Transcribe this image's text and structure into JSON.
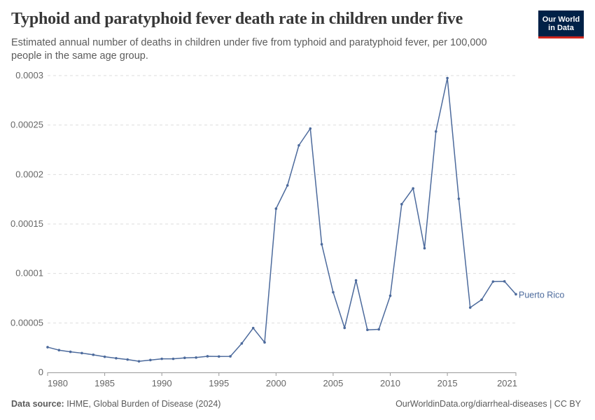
{
  "header": {
    "title": "Typhoid and paratyphoid fever death rate in children under five",
    "subtitle": "Estimated annual number of deaths in children under five from typhoid and paratyphoid fever, per 100,000 people in the same age group.",
    "logo_line1": "Our World",
    "logo_line2": "in Data"
  },
  "footer": {
    "source_label": "Data source:",
    "source_text": "IHME, Global Burden of Disease (2024)",
    "right_text": "OurWorldinData.org/diarrheal-diseases | CC BY"
  },
  "colors": {
    "series": "#4c6a9c",
    "grid": "#dddddd",
    "axis": "#666666"
  },
  "chart_data": {
    "type": "line",
    "title": "Typhoid and paratyphoid fever death rate in children under five",
    "xlim": [
      1980,
      2021
    ],
    "ylim": [
      0,
      0.0003
    ],
    "x_ticks": [
      1980,
      1985,
      1990,
      1995,
      2000,
      2005,
      2010,
      2015,
      2021
    ],
    "y_ticks": [
      {
        "value": 0,
        "label": "0"
      },
      {
        "value": 5e-05,
        "label": "0.00005"
      },
      {
        "value": 0.0001,
        "label": "0.0001"
      },
      {
        "value": 0.00015,
        "label": "0.00015"
      },
      {
        "value": 0.0002,
        "label": "0.0002"
      },
      {
        "value": 0.00025,
        "label": "0.00025"
      },
      {
        "value": 0.0003,
        "label": "0.0003"
      }
    ],
    "grid": true,
    "series": [
      {
        "name": "Puerto Rico",
        "x": [
          1980,
          1981,
          1982,
          1983,
          1984,
          1985,
          1986,
          1987,
          1988,
          1989,
          1990,
          1991,
          1992,
          1993,
          1994,
          1995,
          1996,
          1997,
          1998,
          1999,
          2000,
          2001,
          2002,
          2003,
          2004,
          2005,
          2006,
          2007,
          2008,
          2009,
          2010,
          2011,
          2012,
          2013,
          2014,
          2015,
          2016,
          2017,
          2018,
          2019,
          2020,
          2021
        ],
        "values": [
          2.55e-05,
          2.25e-05,
          2.08e-05,
          1.95e-05,
          1.78e-05,
          1.58e-05,
          1.43e-05,
          1.3e-05,
          1.12e-05,
          1.25e-05,
          1.37e-05,
          1.37e-05,
          1.47e-05,
          1.5e-05,
          1.63e-05,
          1.61e-05,
          1.62e-05,
          2.93e-05,
          4.48e-05,
          3.03e-05,
          0.0001655,
          0.000189,
          0.0002295,
          0.0002465,
          0.0001295,
          8.1e-05,
          4.5e-05,
          9.3e-05,
          4.3e-05,
          4.35e-05,
          7.75e-05,
          0.00017,
          0.000186,
          0.0001255,
          0.0002435,
          0.0002975,
          0.0001755,
          6.55e-05,
          7.35e-05,
          9.18e-05,
          9.2e-05,
          7.9e-05
        ]
      }
    ]
  }
}
